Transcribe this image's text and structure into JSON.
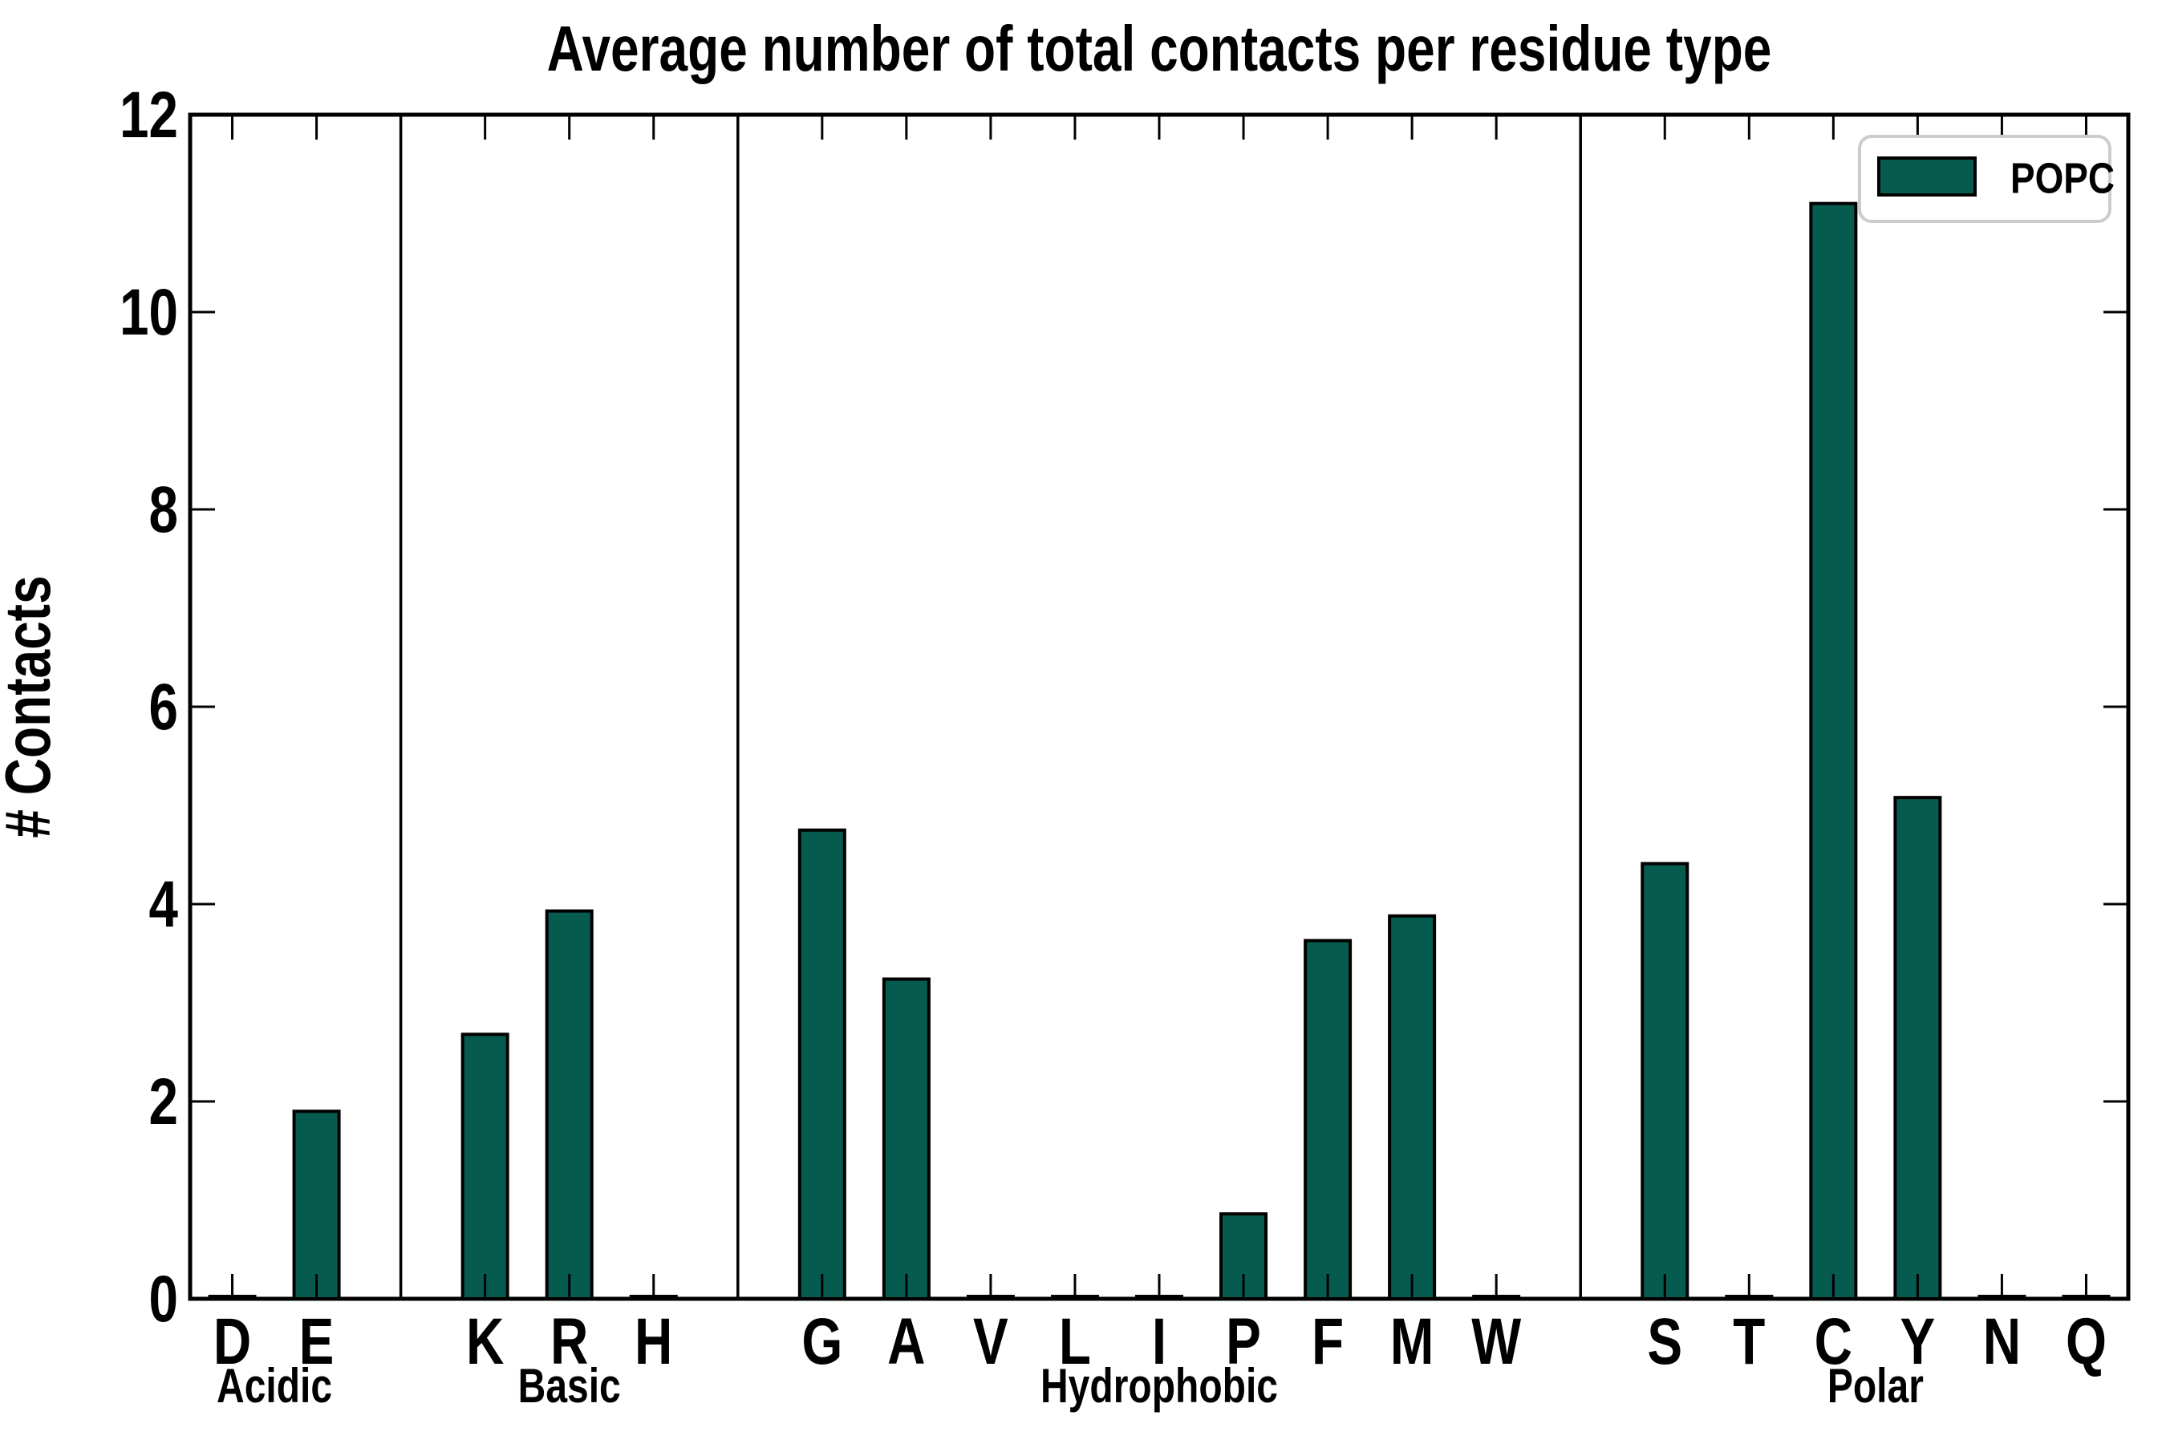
{
  "figure": {
    "title": "Average number of total contacts per residue type",
    "ylabel": "# Contacts",
    "background_color": "#ffffff",
    "axis_color": "#000000"
  },
  "legend": {
    "label": "POPC",
    "swatch_color": "#065b4f",
    "swatch_edge_color": "#000000",
    "box_border_color": "#cccccc",
    "position": "upper right"
  },
  "chart_data": {
    "type": "bar",
    "title": "Average number of total contacts per residue type",
    "xlabel": "",
    "ylabel": "# Contacts",
    "ylim": [
      0,
      12
    ],
    "yticks": [
      0,
      2,
      4,
      6,
      8,
      10,
      12
    ],
    "grid": false,
    "legend_position": "upper right",
    "bar_color": "#065b4f",
    "bar_edge_color": "#000000",
    "series_name": "POPC",
    "categories": [
      "D",
      "E",
      "K",
      "R",
      "H",
      "G",
      "A",
      "V",
      "L",
      "I",
      "P",
      "F",
      "M",
      "W",
      "S",
      "T",
      "C",
      "Y",
      "N",
      "Q"
    ],
    "values": [
      0,
      1.9,
      2.68,
      3.93,
      0,
      4.75,
      3.24,
      0,
      0,
      0,
      0.86,
      3.63,
      3.88,
      0,
      4.41,
      0,
      11.1,
      5.08,
      0,
      0
    ],
    "groups": [
      {
        "label": "Acidic",
        "residues": [
          "D",
          "E"
        ],
        "values": [
          0,
          1.9
        ]
      },
      {
        "label": "Basic",
        "residues": [
          "K",
          "R",
          "H"
        ],
        "values": [
          2.68,
          3.93,
          0
        ]
      },
      {
        "label": "Hydrophobic",
        "residues": [
          "G",
          "A",
          "V",
          "L",
          "I",
          "P",
          "F",
          "M",
          "W"
        ],
        "values": [
          4.75,
          3.24,
          0,
          0,
          0,
          0.86,
          3.63,
          3.88,
          0
        ]
      },
      {
        "label": "Polar",
        "residues": [
          "S",
          "T",
          "C",
          "Y",
          "N",
          "Q"
        ],
        "values": [
          4.41,
          0,
          11.1,
          5.08,
          0,
          0
        ]
      }
    ]
  }
}
